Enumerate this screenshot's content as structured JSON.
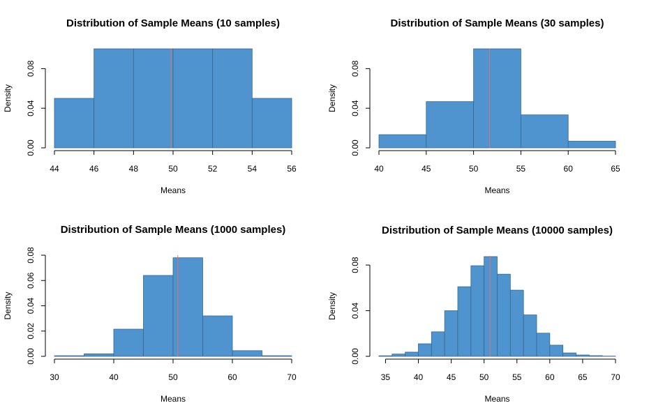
{
  "chart_data": [
    {
      "type": "histogram",
      "title": "Distribution of Sample Means (10 samples)",
      "xlabel": "Means",
      "ylabel": "Density",
      "bins": [
        44,
        46,
        48,
        50,
        52,
        54,
        56
      ],
      "values": [
        0.05,
        0.1,
        0.1,
        0.1,
        0.1,
        0.05
      ],
      "color": "#4f94cf",
      "mean_line": 49.9,
      "mean_color": "#e07070",
      "xlim": [
        44,
        56
      ],
      "ylim": [
        0,
        0.1
      ],
      "xticks": [
        44,
        46,
        48,
        50,
        52,
        54,
        56
      ],
      "yticks": [
        {
          "value": 0,
          "label": "0.00"
        },
        0.04,
        0.08
      ]
    },
    {
      "type": "histogram",
      "title": "Distribution of Sample Means (30 samples)",
      "xlabel": "Means",
      "ylabel": "Density",
      "bins": [
        40,
        45,
        50,
        55,
        60,
        65
      ],
      "values": [
        0.0133,
        0.0467,
        0.1,
        0.0333,
        0.0067
      ],
      "color": "#4f94cf",
      "mean_line": 51.7,
      "mean_color": "#e07070",
      "xlim": [
        40,
        65
      ],
      "ylim": [
        0,
        0.1
      ],
      "xticks": [
        40,
        45,
        50,
        55,
        60,
        65
      ],
      "yticks": [
        {
          "value": 0,
          "label": "0.00"
        },
        0.04,
        0.08
      ]
    },
    {
      "type": "histogram",
      "title": "Distribution of Sample Means (1000 samples)",
      "xlabel": "Means",
      "ylabel": "Density",
      "bins": [
        30,
        35,
        40,
        45,
        50,
        55,
        60,
        65,
        70
      ],
      "values": [
        0.0005,
        0.002,
        0.0215,
        0.064,
        0.078,
        0.032,
        0.0045,
        0.0005
      ],
      "color": "#4f94cf",
      "mean_line": 50.8,
      "mean_color": "#e07070",
      "xlim": [
        30,
        70
      ],
      "ylim": [
        0,
        0.08
      ],
      "xticks": [
        30,
        40,
        50,
        60,
        70
      ],
      "yticks": [
        {
          "value": 0,
          "label": "0.00"
        },
        {
          "value": 0.02,
          "label": "0.02"
        },
        {
          "value": 0.04,
          "label": "0.04"
        },
        {
          "value": 0.06,
          "label": "0.06"
        },
        {
          "value": 0.08,
          "label": "0.08"
        }
      ]
    },
    {
      "type": "histogram",
      "title": "Distribution of Sample Means (10000 samples)",
      "xlabel": "Means",
      "ylabel": "Density",
      "bins": [
        34,
        36,
        38,
        40,
        42,
        44,
        46,
        48,
        50,
        52,
        54,
        56,
        58,
        60,
        62,
        64,
        66,
        68,
        70
      ],
      "values": [
        0.0005,
        0.002,
        0.0037,
        0.011,
        0.0215,
        0.04,
        0.061,
        0.0794,
        0.0874,
        0.072,
        0.058,
        0.0363,
        0.0203,
        0.0098,
        0.003,
        0.0012,
        0.0006,
        0.0002
      ],
      "color": "#4f94cf",
      "mean_line": 50.9,
      "mean_color": "#e07070",
      "xlim": [
        34,
        70
      ],
      "ylim": [
        0,
        0.088
      ],
      "xticks": [
        35,
        40,
        45,
        50,
        55,
        60,
        65,
        70
      ],
      "yticks": [
        {
          "value": 0,
          "label": "0.00"
        },
        0.04,
        0.08
      ]
    }
  ]
}
